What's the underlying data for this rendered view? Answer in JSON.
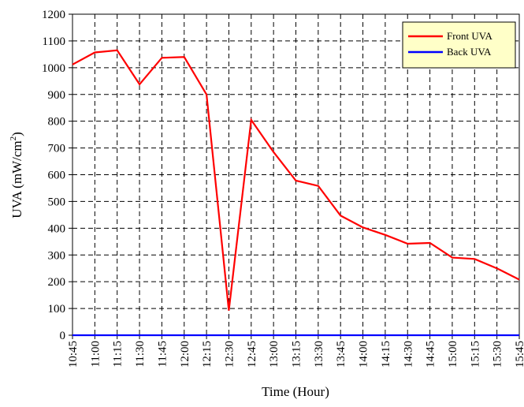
{
  "chart_data": {
    "type": "line",
    "title": "",
    "xlabel": "Time (Hour)",
    "ylabel": "UVA (mW/cm",
    "ylabel_superscript": "2",
    "ylabel_close": ")",
    "x": [
      "10:45",
      "11:00",
      "11:15",
      "11:30",
      "11:45",
      "12:00",
      "12:15",
      "12:30",
      "12:45",
      "13:00",
      "13:15",
      "13:30",
      "13:45",
      "14:00",
      "14:15",
      "14:30",
      "14:45",
      "15:00",
      "15:15",
      "15:30",
      "15:45"
    ],
    "yticks": [
      0,
      100,
      200,
      300,
      400,
      500,
      600,
      700,
      800,
      900,
      1000,
      1100,
      1200
    ],
    "ylim": [
      0,
      1200
    ],
    "grid": true,
    "legend_position": "top-right",
    "series": [
      {
        "name": "Front UVA",
        "color": "#ff0000",
        "values": [
          1012,
          1057,
          1065,
          938,
          1037,
          1040,
          900,
          92,
          805,
          685,
          578,
          558,
          447,
          403,
          375,
          342,
          345,
          290,
          285,
          250,
          208
        ]
      },
      {
        "name": "Back UVA",
        "color": "#0000ff",
        "values": [
          0,
          0,
          0,
          0,
          0,
          0,
          0,
          0,
          0,
          0,
          0,
          0,
          0,
          0,
          0,
          0,
          0,
          0,
          0,
          0,
          0
        ]
      }
    ]
  }
}
